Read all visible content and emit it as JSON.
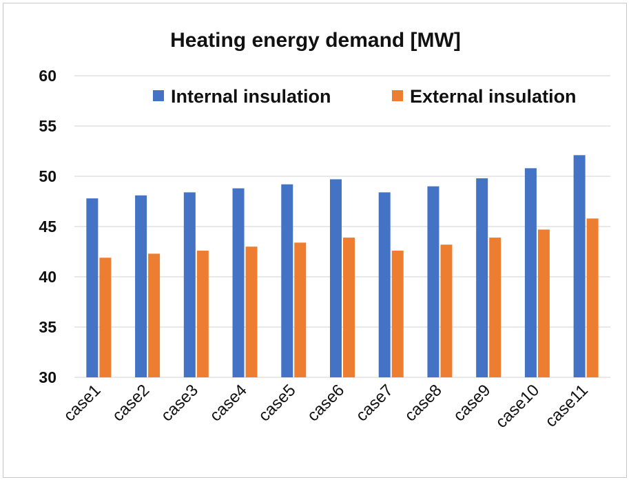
{
  "chart_data": {
    "type": "bar",
    "title": "Heating energy demand [MW]",
    "xlabel": "",
    "ylabel": "",
    "ylim": [
      30,
      60
    ],
    "yticks": [
      30,
      35,
      40,
      45,
      50,
      55,
      60
    ],
    "grid": true,
    "legend_position": "top-right",
    "categories": [
      "case1",
      "case2",
      "case3",
      "case4",
      "case5",
      "case6",
      "case7",
      "case8",
      "case9",
      "case10",
      "case11"
    ],
    "series": [
      {
        "name": "Internal insulation",
        "color": "#4472C4",
        "values": [
          47.8,
          48.1,
          48.4,
          48.8,
          49.2,
          49.7,
          48.4,
          49.0,
          49.8,
          50.8,
          52.1
        ]
      },
      {
        "name": "External insulation",
        "color": "#ED7D31",
        "values": [
          41.9,
          42.3,
          42.6,
          43.0,
          43.4,
          43.9,
          42.6,
          43.2,
          43.9,
          44.7,
          45.8
        ]
      }
    ]
  }
}
